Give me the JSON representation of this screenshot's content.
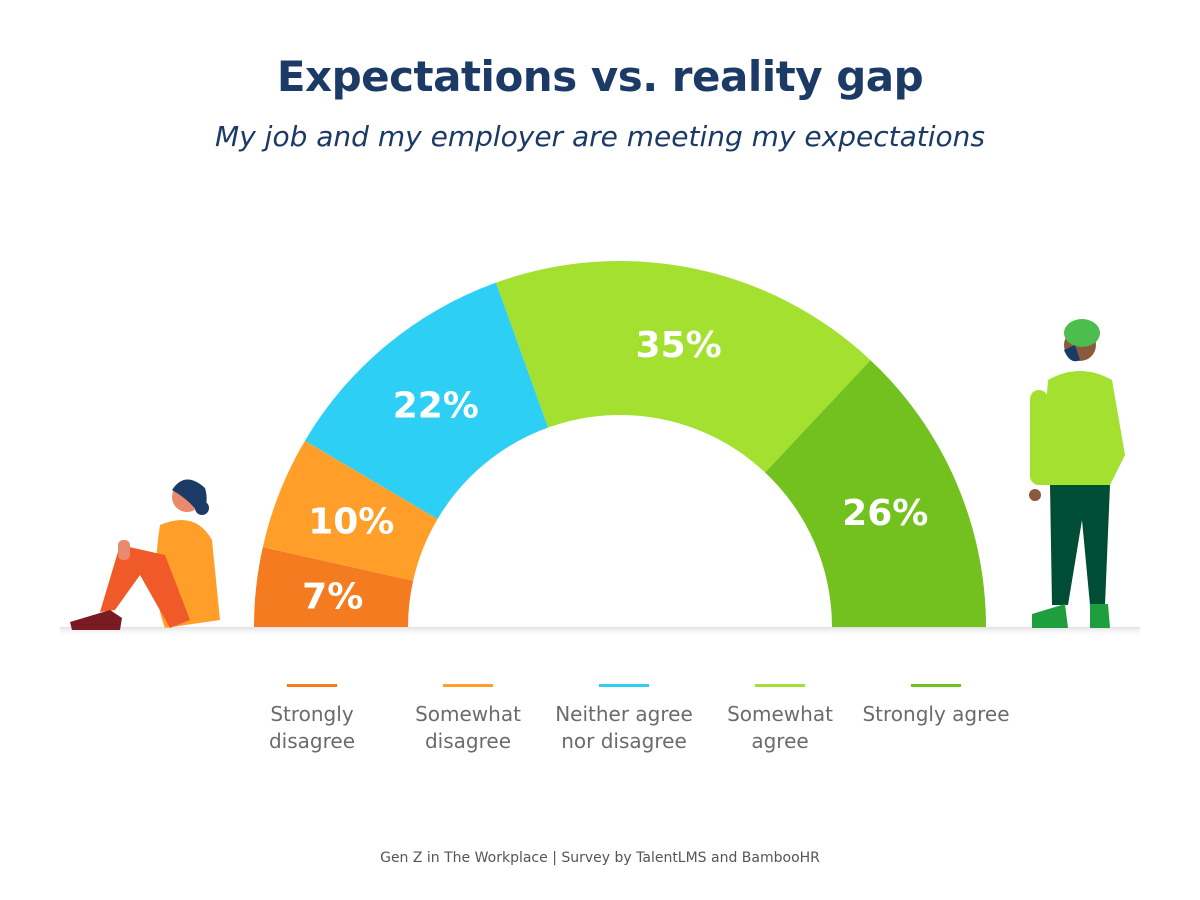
{
  "title": "Expectations vs. reality gap",
  "subtitle": "My job and my employer are meeting my expectations",
  "footer": "Gen Z in The Workplace | Survey by TalentLMS and BambooHR",
  "chart_data": {
    "type": "pie",
    "variant": "semi-donut",
    "title": "Expectations vs. reality gap",
    "subtitle": "My job and my employer are meeting my expectations",
    "categories": [
      "Strongly disagree",
      "Somewhat disagree",
      "Neither agree nor disagree",
      "Somewhat agree",
      "Strongly agree"
    ],
    "values": [
      7,
      10,
      22,
      35,
      26
    ],
    "data_labels": [
      "7%",
      "10%",
      "22%",
      "35%",
      "26%"
    ],
    "colors": [
      "#f47b20",
      "#ff9f2a",
      "#2dcff5",
      "#a3e02f",
      "#72c11f"
    ],
    "legend_placement": "bottom"
  }
}
